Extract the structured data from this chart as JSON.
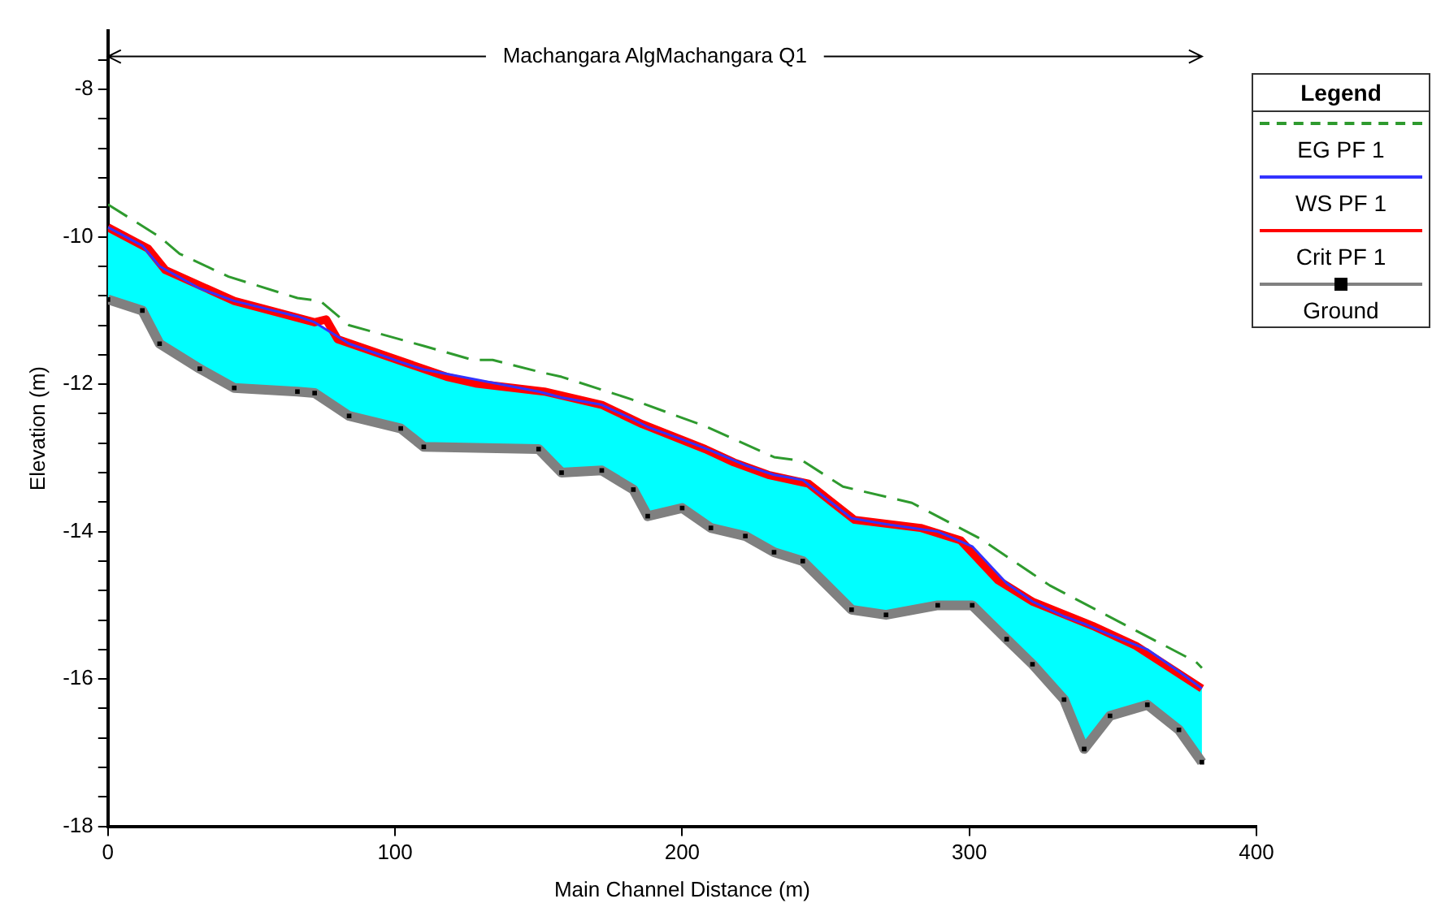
{
  "chart_data": {
    "type": "line",
    "title": "Machangara AlgMachangara Q1",
    "xlabel": "Main Channel Distance (m)",
    "ylabel": "Elevation (m)",
    "legend_title": "Legend",
    "legend": "right",
    "grid": false,
    "xlim": [
      0,
      400
    ],
    "xticks": [
      0,
      100,
      200,
      300,
      400
    ],
    "ylim": [
      -18,
      -7.2
    ],
    "yticks": [
      -18,
      {
        "value": -17.6,
        "label": null
      },
      {
        "value": -17.2,
        "label": null
      },
      {
        "value": -16.8,
        "label": null
      },
      {
        "value": -16.4,
        "label": null
      },
      -16,
      {
        "value": -15.6,
        "label": null
      },
      {
        "value": -15.2,
        "label": null
      },
      {
        "value": -14.8,
        "label": null
      },
      {
        "value": -14.4,
        "label": null
      },
      -14,
      {
        "value": -13.6,
        "label": null
      },
      {
        "value": -13.2,
        "label": null
      },
      {
        "value": -12.8,
        "label": null
      },
      {
        "value": -12.4,
        "label": null
      },
      -12,
      {
        "value": -11.6,
        "label": null
      },
      {
        "value": -11.2,
        "label": null
      },
      {
        "value": -10.8,
        "label": null
      },
      {
        "value": -10.4,
        "label": null
      },
      -10,
      {
        "value": -9.6,
        "label": null
      },
      {
        "value": -9.2,
        "label": null
      },
      {
        "value": -8.8,
        "label": null
      },
      {
        "value": -8.4,
        "label": null
      },
      -8,
      {
        "value": -7.6,
        "label": null
      }
    ],
    "series": [
      {
        "name": "EG  PF 1",
        "color": "#2e9a2e",
        "line_style": "dashed",
        "marker": "none",
        "x": [
          0,
          18,
          25,
          42,
          66,
          74,
          84,
          110,
          127,
          134,
          150,
          158,
          182,
          208,
          232,
          242,
          256,
          280,
          304,
          328,
          352,
          379,
          381
        ],
        "values": [
          -9.56,
          -10.0,
          -10.23,
          -10.54,
          -10.83,
          -10.87,
          -11.2,
          -11.48,
          -11.67,
          -11.67,
          -11.83,
          -11.9,
          -12.2,
          -12.57,
          -12.99,
          -13.04,
          -13.39,
          -13.61,
          -14.1,
          -14.73,
          -15.22,
          -15.77,
          -15.85
        ]
      },
      {
        "name": "WS  PF 1",
        "color": "#3333ff",
        "line_style": "solid",
        "marker": "none",
        "x": [
          0,
          12,
          18,
          32,
          44,
          66,
          72,
          84,
          102,
          110,
          150,
          158,
          172,
          183,
          188,
          200,
          210,
          222,
          232,
          242,
          259,
          271,
          289,
          301,
          313,
          322,
          333,
          340,
          349,
          362,
          373,
          381
        ],
        "values": [
          -9.87,
          -10.12,
          -10.4,
          -10.7,
          -10.87,
          -11.08,
          -11.16,
          -11.45,
          -11.7,
          -11.8,
          -12.1,
          -12.18,
          -12.28,
          -12.48,
          -12.58,
          -12.75,
          -12.9,
          -13.1,
          -13.23,
          -13.3,
          -13.82,
          -13.9,
          -14.0,
          -14.2,
          -14.7,
          -14.95,
          -15.15,
          -15.25,
          -15.4,
          -15.6,
          -15.9,
          -16.13
        ],
        "upper": [
          -9.87,
          -10.12,
          -10.4,
          -10.7,
          -10.87,
          -11.08,
          -11.16,
          -11.45,
          -11.7,
          -11.8,
          -12.1,
          -12.18,
          -12.28,
          -12.48,
          -12.58,
          -12.75,
          -12.9,
          -13.1,
          -13.23,
          -13.3,
          -13.82,
          -13.9,
          -14.0,
          -14.2,
          -14.7,
          -14.95,
          -15.15,
          -15.25,
          -15.4,
          -15.6,
          -15.9,
          -16.13
        ],
        "lower": [
          -10.85,
          -11.0,
          -11.45,
          -11.79,
          -12.05,
          -12.1,
          -12.12,
          -12.43,
          -12.6,
          -12.85,
          -12.88,
          -13.2,
          -13.17,
          -13.43,
          -13.79,
          -13.68,
          -13.95,
          -14.06,
          -14.28,
          -14.4,
          -15.06,
          -15.13,
          -15.0,
          -15.0,
          -15.46,
          -15.8,
          -16.28,
          -16.95,
          -16.5,
          -16.35,
          -16.69,
          -17.13
        ]
      },
      {
        "name": "Crit  PF 1",
        "color": "#ff0000",
        "line_style": "solid",
        "marker": "none",
        "x": [
          0,
          14,
          20,
          44,
          72,
          76,
          80,
          118,
          128,
          152,
          172,
          186,
          208,
          218,
          230,
          244,
          260,
          283,
          297,
          310,
          322,
          343,
          358,
          381
        ],
        "values": [
          -9.87,
          -10.16,
          -10.45,
          -10.87,
          -11.16,
          -11.12,
          -11.39,
          -11.9,
          -11.99,
          -12.1,
          -12.28,
          -12.54,
          -12.88,
          -13.06,
          -13.23,
          -13.35,
          -13.84,
          -13.95,
          -14.12,
          -14.66,
          -14.95,
          -15.28,
          -15.55,
          -16.13
        ]
      },
      {
        "name": "Ground",
        "color": "#808080",
        "line_style": "solid",
        "marker": "square",
        "x": [
          0,
          12,
          18,
          32,
          44,
          66,
          72,
          84,
          102,
          110,
          150,
          158,
          172,
          183,
          188,
          200,
          210,
          222,
          232,
          242,
          259,
          271,
          289,
          301,
          313,
          322,
          333,
          340,
          349,
          362,
          373,
          381
        ],
        "values": [
          -10.85,
          -11.0,
          -11.45,
          -11.79,
          -12.05,
          -12.1,
          -12.12,
          -12.43,
          -12.6,
          -12.85,
          -12.88,
          -13.2,
          -13.17,
          -13.43,
          -13.79,
          -13.68,
          -13.95,
          -14.06,
          -14.28,
          -14.4,
          -15.06,
          -15.13,
          -15.0,
          -15.0,
          -15.46,
          -15.8,
          -16.28,
          -16.95,
          -16.5,
          -16.35,
          -16.69,
          -17.13
        ]
      }
    ]
  }
}
